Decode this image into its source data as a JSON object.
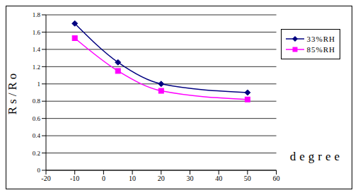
{
  "chart_data": {
    "type": "line",
    "x_label": "degree",
    "y_label": "Rs/Ro",
    "x": [
      -10,
      5,
      20,
      50
    ],
    "series": [
      {
        "name": "33%RH",
        "color": "#000080",
        "marker": "diamond",
        "values": [
          1.7,
          1.25,
          1.0,
          0.9
        ]
      },
      {
        "name": "85%RH",
        "color": "#ff00ff",
        "marker": "square",
        "values": [
          1.53,
          1.15,
          0.92,
          0.82
        ]
      }
    ],
    "xlim": [
      -20,
      60
    ],
    "xticks": [
      -20,
      -10,
      0,
      10,
      20,
      30,
      40,
      50,
      60
    ],
    "ylim": [
      0,
      1.8
    ],
    "yticks": [
      0,
      0.2,
      0.4,
      0.6,
      0.8,
      1,
      1.2,
      1.4,
      1.6,
      1.8
    ],
    "grid": true,
    "legend": "upper right"
  }
}
